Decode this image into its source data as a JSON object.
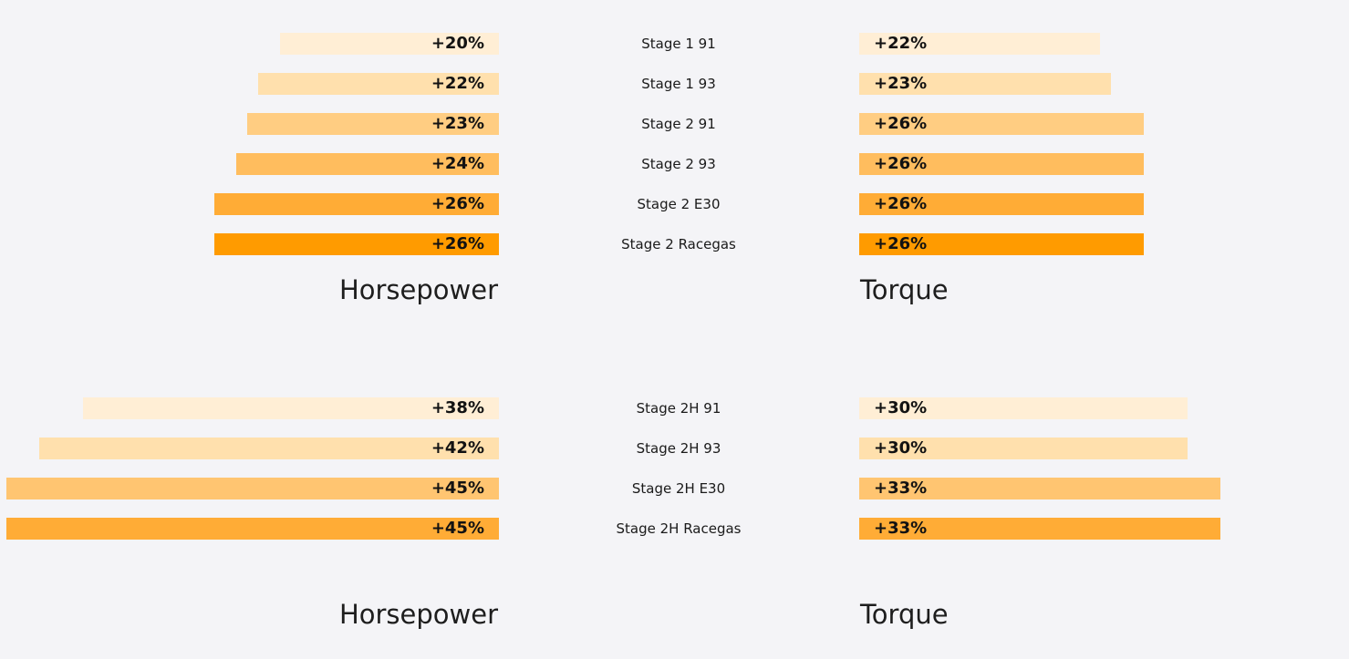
{
  "chart_data": [
    {
      "type": "bar",
      "orientation": "horizontal",
      "layout": "diverging-butterfly",
      "categories": [
        "Stage 1 91",
        "Stage 1 93",
        "Stage 2 91",
        "Stage 2 93",
        "Stage 2 E30",
        "Stage 2 Racegas"
      ],
      "series": [
        {
          "name": "Horsepower",
          "side": "left",
          "values": [
            20,
            22,
            23,
            24,
            26,
            26
          ],
          "labels": [
            "+20%",
            "+22%",
            "+23%",
            "+24%",
            "+26%",
            "+26%"
          ]
        },
        {
          "name": "Torque",
          "side": "right",
          "values": [
            22,
            23,
            26,
            26,
            26,
            26
          ],
          "labels": [
            "+22%",
            "+23%",
            "+26%",
            "+26%",
            "+26%",
            "+26%"
          ]
        }
      ],
      "bar_colors": [
        "#ffeed5",
        "#ffe0ad",
        "#ffcd82",
        "#ffbd5e",
        "#ffac36",
        "#ff9b00"
      ],
      "grid": false,
      "legend": "none"
    },
    {
      "type": "bar",
      "orientation": "horizontal",
      "layout": "diverging-butterfly",
      "categories": [
        "Stage 2H 91",
        "Stage 2H 93",
        "Stage 2H E30",
        "Stage 2H Racegas"
      ],
      "series": [
        {
          "name": "Horsepower",
          "side": "left",
          "values": [
            38,
            42,
            45,
            45
          ],
          "labels": [
            "+38%",
            "+42%",
            "+45%",
            "+45%"
          ]
        },
        {
          "name": "Torque",
          "side": "right",
          "values": [
            30,
            30,
            33,
            33
          ],
          "labels": [
            "+30%",
            "+30%",
            "+33%",
            "+33%"
          ]
        }
      ],
      "bar_colors": [
        "#ffeed5",
        "#ffe0ad",
        "#ffc571",
        "#ffac36"
      ],
      "grid": false,
      "legend": "none"
    }
  ]
}
